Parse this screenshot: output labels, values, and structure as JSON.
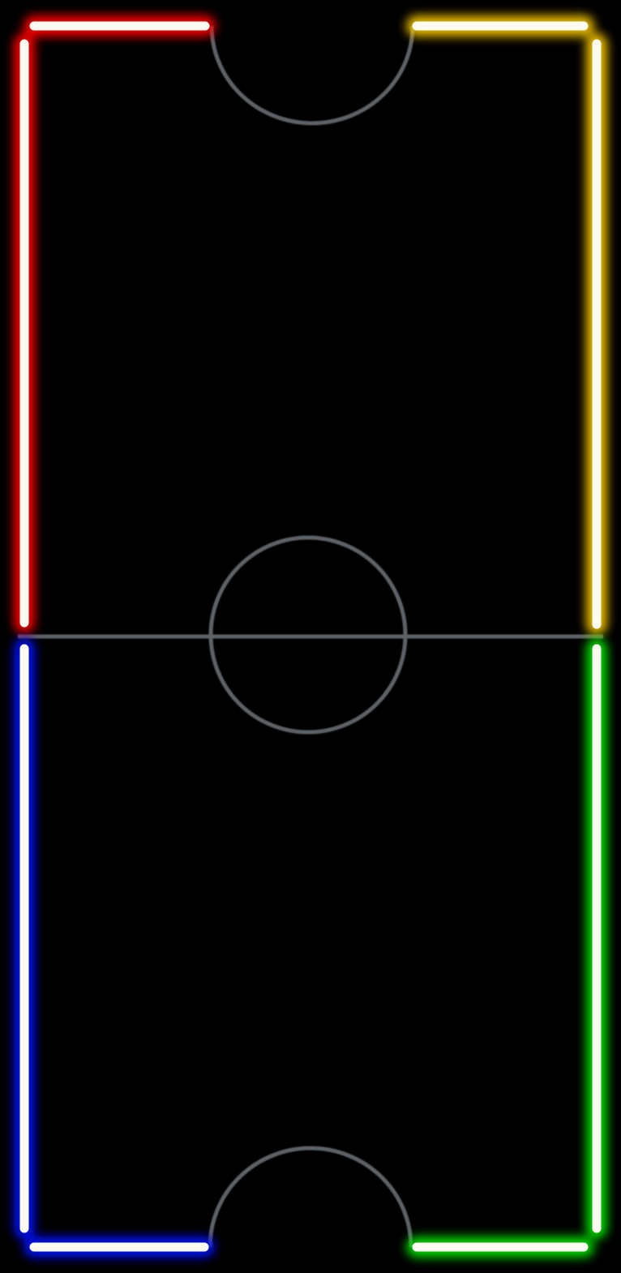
{
  "table": {
    "background": "#000000",
    "marking_color": "#5d6266",
    "wall_core_color": "#fbfbf2",
    "corners": [
      {
        "name": "top-left",
        "color": "#ff0000"
      },
      {
        "name": "top-right",
        "color": "#f5c400"
      },
      {
        "name": "bottom-left",
        "color": "#0010ff"
      },
      {
        "name": "bottom-right",
        "color": "#00e000"
      }
    ]
  }
}
